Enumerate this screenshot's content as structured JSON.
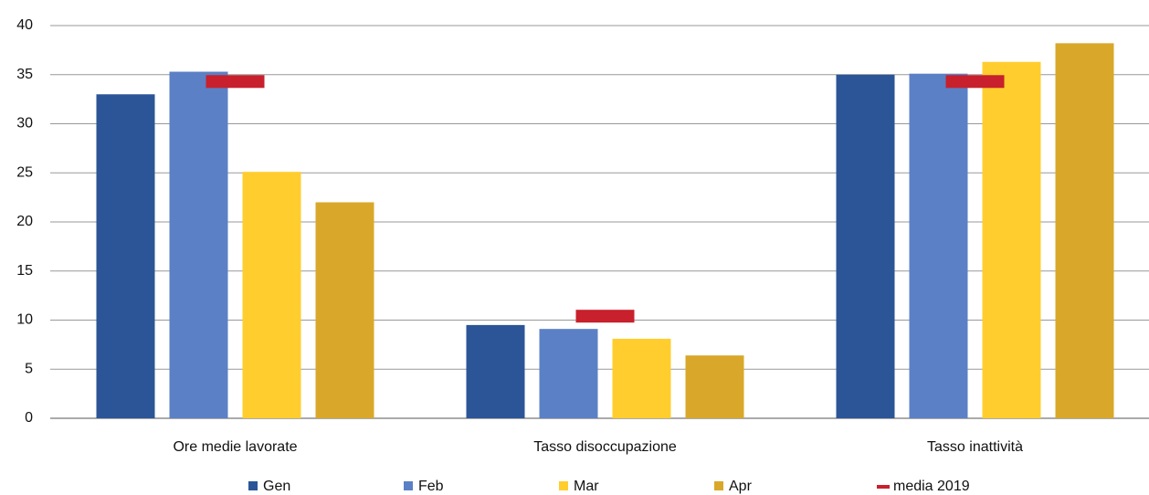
{
  "chart_data": {
    "type": "bar",
    "categories": [
      "Ore medie lavorate",
      "Tasso disoccupazione",
      "Tasso inattività"
    ],
    "series": [
      {
        "name": "Gen",
        "color": "#2b5597",
        "values": [
          33,
          9.5,
          35
        ]
      },
      {
        "name": "Feb",
        "color": "#5b80c5",
        "values": [
          35.3,
          9.1,
          35.1
        ]
      },
      {
        "name": "Mar",
        "color": "#ffcd2e",
        "values": [
          25.1,
          8.1,
          36.3
        ]
      },
      {
        "name": "Apr",
        "color": "#d9a82a",
        "values": [
          22,
          6.4,
          38.2
        ]
      },
      {
        "name": "media 2019",
        "color": "#c8202c",
        "type": "marker",
        "values": [
          34.3,
          10.4,
          34.3
        ]
      }
    ],
    "ylim": [
      0,
      40
    ],
    "yticks": [
      0,
      5,
      10,
      15,
      20,
      25,
      30,
      35,
      40
    ],
    "grid": true
  }
}
